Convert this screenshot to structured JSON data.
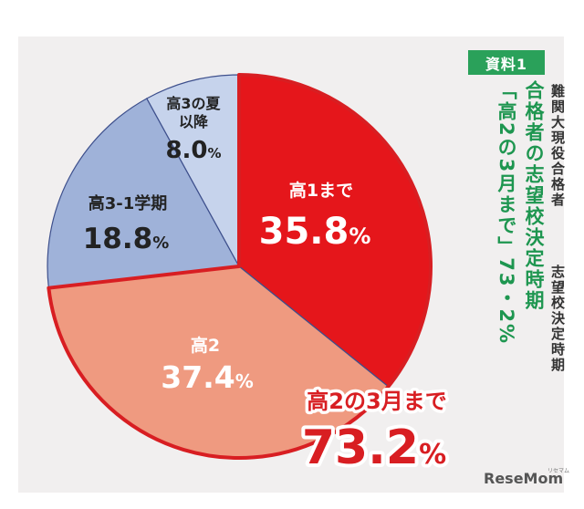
{
  "chart_data": {
    "type": "pie",
    "slices": [
      {
        "label": "高1まで",
        "value": 35.8,
        "value_text": "35.8",
        "color": "#e5161b"
      },
      {
        "label": "高2",
        "value": 37.4,
        "value_text": "37.4",
        "color": "#ef9a80"
      },
      {
        "label": "高3-1学期",
        "value": 18.8,
        "value_text": "18.8",
        "color": "#9fb2d9"
      },
      {
        "label_line1": "高3の夏",
        "label_line2": "以降",
        "value": 8.0,
        "value_text": "8.0",
        "color": "#c6d3ec"
      }
    ],
    "percent_sign": "%",
    "highlight": {
      "label": "高2の3月まで",
      "value_text": "73.2",
      "value": 73.2,
      "color": "#d81e22"
    }
  },
  "side": {
    "tag": "資料1",
    "green_col1": "合格者の志望校決定時期",
    "green_col2": "「高2の3月まで」73・2%",
    "black_col1": "難関大現役合格者",
    "black_col2": "志望校決定時期"
  },
  "logo": {
    "text": "ReseMom",
    "small": "リセマム"
  }
}
